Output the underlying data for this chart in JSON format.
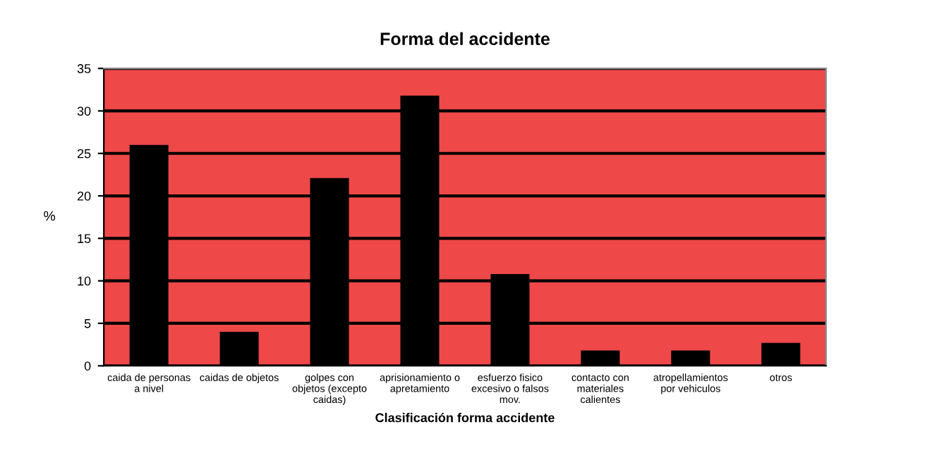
{
  "chart_data": {
    "type": "bar",
    "title": "Forma del accidente",
    "xlabel": "Clasificación forma accidente",
    "ylabel": "%",
    "categories": [
      "caida de personas\na nivel",
      "caidas de objetos",
      "golpes con\nobjetos (excepto\ncaidas)",
      "aprisionamiento o\napretamiento",
      "esfuerzo fisico\nexcesivo o falsos\nmov.",
      "contacto con\nmateriales\ncalientes",
      "atropellamientos\npor vehiculos",
      "otros"
    ],
    "values": [
      26,
      4,
      22.1,
      31.8,
      10.8,
      1.8,
      1.8,
      2.7
    ],
    "color": "#000000",
    "ylim": [
      0,
      35
    ],
    "yticks": [
      0,
      5,
      10,
      15,
      20,
      25,
      30,
      35
    ],
    "grid": "y",
    "legend": false
  }
}
